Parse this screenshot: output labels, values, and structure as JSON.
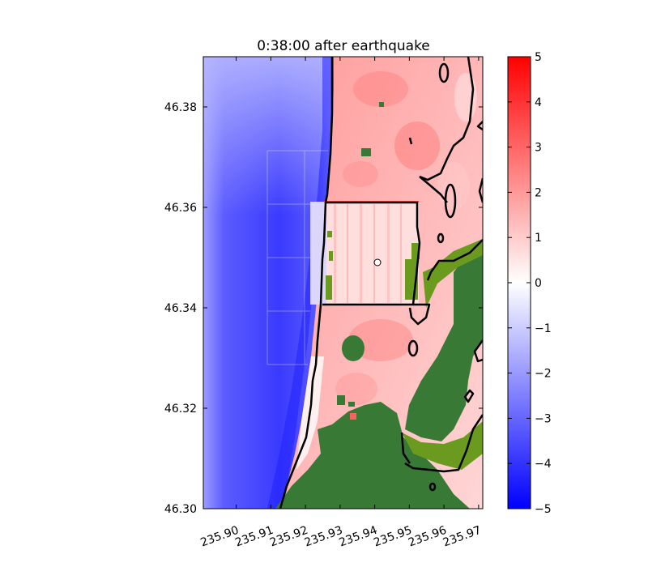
{
  "chart_data": {
    "type": "heatmap",
    "title": "0:38:00 after earthquake",
    "xlabel": "",
    "ylabel": "",
    "x_ticks": [
      "235.90",
      "235.91",
      "235.92",
      "235.93",
      "235.94",
      "235.95",
      "235.96",
      "235.97"
    ],
    "y_ticks": [
      "46.30",
      "46.32",
      "46.34",
      "46.36",
      "46.38"
    ],
    "xlim": [
      235.8905,
      235.9712
    ],
    "ylim": [
      46.3,
      46.39
    ],
    "colorbar": {
      "ticks": [
        "5",
        "4",
        "3",
        "2",
        "1",
        "0",
        "−1",
        "−2",
        "−3",
        "−4",
        "−5"
      ],
      "range": [
        -5,
        5
      ],
      "colors": {
        "high": "#ff0000",
        "mid": "#ffffff",
        "low": "#0000ff"
      }
    },
    "land_colors": {
      "dark": "#387a35",
      "light": "#6a9a1e"
    },
    "contour_color": "#000000",
    "marker": {
      "x": 235.9502,
      "y": 46.349
    }
  }
}
